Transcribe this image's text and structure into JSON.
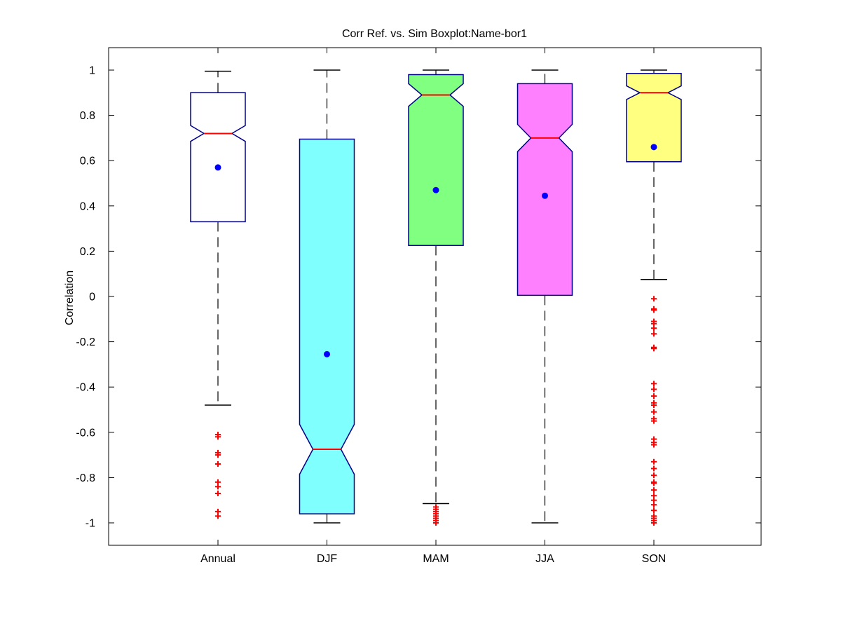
{
  "chart_data": {
    "type": "boxplot",
    "title": "Corr Ref. vs. Sim Boxplot:Name-bor1",
    "xlabel": "",
    "ylabel": "Correlation",
    "ylim": [
      -1.1,
      1.1
    ],
    "yticks": [
      "1",
      "0.8",
      "0.6",
      "0.4",
      "0.2",
      "0",
      "-0.2",
      "-0.4",
      "-0.6",
      "-0.8",
      "-1"
    ],
    "ytick_values": [
      1,
      0.8,
      0.6,
      0.4,
      0.2,
      0,
      -0.2,
      -0.4,
      -0.6,
      -0.8,
      -1
    ],
    "grid": false,
    "notched": true,
    "categories": [
      "Annual",
      "DJF",
      "MAM",
      "JJA",
      "SON"
    ],
    "boxes": [
      {
        "label": "Annual",
        "fill": "#ffffff",
        "q1": 0.33,
        "median": 0.72,
        "q3": 0.9,
        "notch_low": 0.685,
        "notch_high": 0.755,
        "whisker_low": -0.48,
        "whisker_high": 0.995,
        "mean": 0.57,
        "outliers": [
          -0.61,
          -0.62,
          -0.69,
          -0.7,
          -0.74,
          -0.74,
          -0.82,
          -0.84,
          -0.87,
          -0.95,
          -0.97
        ]
      },
      {
        "label": "DJF",
        "fill": "#80ffff",
        "q1": -0.96,
        "median": -0.675,
        "q3": 0.695,
        "notch_low": -0.785,
        "notch_high": -0.565,
        "whisker_low": -1.0,
        "whisker_high": 1.0,
        "mean": -0.255,
        "outliers": []
      },
      {
        "label": "MAM",
        "fill": "#80ff80",
        "q1": 0.225,
        "median": 0.89,
        "q3": 0.98,
        "notch_low": 0.84,
        "notch_high": 0.94,
        "whisker_low": -0.915,
        "whisker_high": 1.0,
        "mean": 0.47,
        "outliers": [
          -0.93,
          -0.94,
          -0.95,
          -0.96,
          -0.97,
          -0.98,
          -0.99,
          -1.0
        ]
      },
      {
        "label": "JJA",
        "fill": "#ff80ff",
        "q1": 0.005,
        "median": 0.7,
        "q3": 0.94,
        "notch_low": 0.64,
        "notch_high": 0.76,
        "whisker_low": -1.0,
        "whisker_high": 1.0,
        "mean": 0.445,
        "outliers": []
      },
      {
        "label": "SON",
        "fill": "#ffff80",
        "q1": 0.595,
        "median": 0.9,
        "q3": 0.985,
        "notch_low": 0.87,
        "notch_high": 0.93,
        "whisker_low": 0.075,
        "whisker_high": 1.0,
        "mean": 0.66,
        "outliers": [
          -0.01,
          -0.055,
          -0.06,
          -0.11,
          -0.12,
          -0.14,
          -0.165,
          -0.225,
          -0.23,
          -0.385,
          -0.41,
          -0.44,
          -0.47,
          -0.48,
          -0.51,
          -0.54,
          -0.55,
          -0.63,
          -0.645,
          -0.655,
          -0.73,
          -0.76,
          -0.79,
          -0.82,
          -0.825,
          -0.855,
          -0.88,
          -0.9,
          -0.92,
          -0.945,
          -0.97,
          -0.98,
          -0.99,
          -1.0
        ]
      }
    ],
    "colors": {
      "box_edge": "#00008b",
      "median": "#ff0000",
      "mean_marker": "#0000ff",
      "outlier": "#ff0000",
      "whisker": "#000000",
      "axes": "#000000"
    }
  }
}
